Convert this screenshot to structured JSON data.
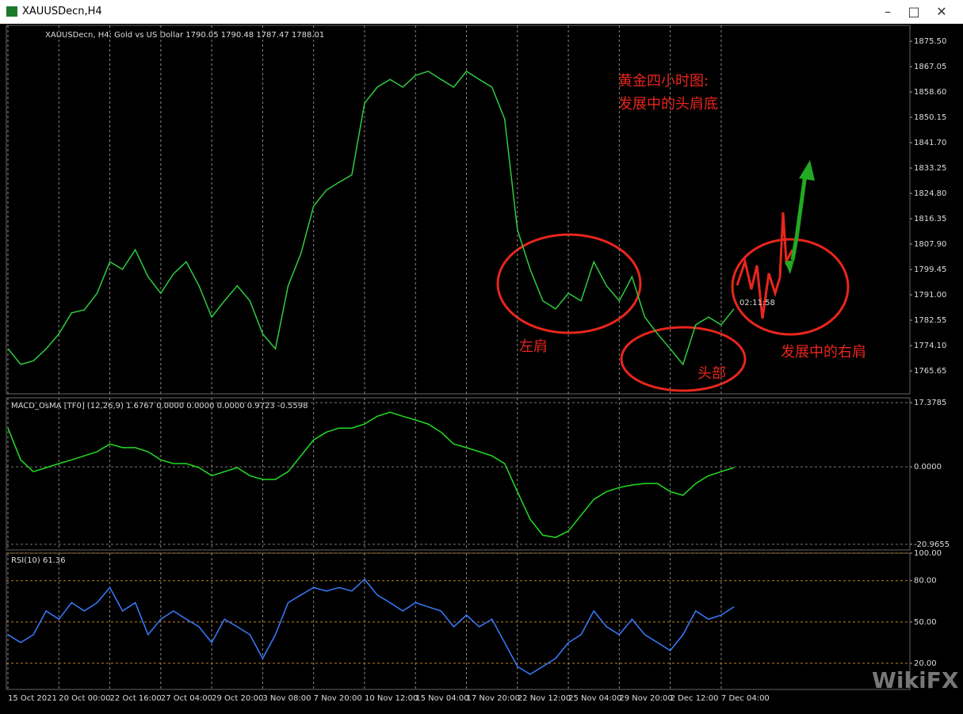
{
  "window": {
    "title": "XAUUSDecn,H4"
  },
  "watermark": "WikiFX",
  "chart_data": [
    {
      "type": "line",
      "title": "XAUUSDecn, H4:  Gold vs US Dollar  1790.05 1790.48 1787.47 1788.01",
      "categories": [
        "15 Oct 2021",
        null,
        null,
        null,
        "20 Oct 00:00",
        null,
        null,
        null,
        "22 Oct 16:00",
        null,
        null,
        null,
        "27 Oct 04:00",
        null,
        null,
        null,
        "29 Oct 20:00",
        null,
        null,
        null,
        "3 Nov 08:00",
        null,
        null,
        null,
        "7 Nov 20:00",
        null,
        null,
        null,
        "10 Nov 12:00",
        null,
        null,
        null,
        "15 Nov 04:00",
        null,
        null,
        null,
        "17 Nov 20:00",
        null,
        null,
        null,
        "22 Nov 12:00",
        null,
        null,
        null,
        "25 Nov 04:00",
        null,
        null,
        null,
        "29 Nov 20:00",
        null,
        null,
        null,
        "2 Dec 12:00",
        null,
        null,
        null,
        "7 Dec 04:00",
        null
      ],
      "values": [
        1773.1,
        1767.8,
        1769.0,
        1773.0,
        1778.0,
        1785.0,
        1786.0,
        1791.5,
        1802.0,
        1799.5,
        1806.0,
        1797.0,
        1791.5,
        1798.0,
        1802.0,
        1794.0,
        1783.6,
        1789.0,
        1794.0,
        1789.0,
        1778.0,
        1773.0,
        1794.0,
        1804.7,
        1820.6,
        1825.9,
        1828.5,
        1831.0,
        1854.9,
        1860.2,
        1862.8,
        1860.2,
        1864.1,
        1865.5,
        1862.8,
        1860.2,
        1865.5,
        1862.8,
        1860.2,
        1849.6,
        1812.7,
        1799.5,
        1789.0,
        1786.3,
        1791.5,
        1789.0,
        1802.0,
        1794.0,
        1789.0,
        1797.0,
        1783.6,
        1778.0,
        1773.0,
        1767.8,
        1781.0,
        1783.6,
        1781.0,
        1786.3
      ],
      "color": "#2ecc40",
      "ylim": [
        1758.0,
        1880.8
      ],
      "yticks": [
        {
          "value": 1875.5,
          "label": "1875.50"
        },
        1867.05,
        {
          "value": 1858.6,
          "label": "1858.60"
        },
        1850.15,
        {
          "value": 1841.7,
          "label": "1841.70"
        },
        1833.25,
        {
          "value": 1824.8,
          "label": "1824.80"
        },
        1816.35,
        {
          "value": 1807.9,
          "label": "1807.90"
        },
        1799.45,
        {
          "value": 1791,
          "label": "1791.00"
        },
        1782.55,
        {
          "value": 1774.1,
          "label": "1774.10"
        },
        1765.65
      ],
      "grid": true,
      "timer": "02:11:58",
      "annotations": [
        "黄金四小时图:",
        "发展中的头肩底",
        "左肩",
        "头部",
        "发展中的右肩"
      ]
    },
    {
      "type": "line",
      "title": "MACD_OsMA [TF0] (12,26,9)  1.6767 0.0000 0.0000 0.0000 0.9723 -0.5598",
      "values": [
        10.5,
        1.9,
        -1.3,
        -0.2,
        0.9,
        1.9,
        3.0,
        4.1,
        6.2,
        5.2,
        5.2,
        4.1,
        1.9,
        0.9,
        0.9,
        -0.2,
        -2.4,
        -1.3,
        -0.2,
        -2.4,
        -3.4,
        -3.4,
        -1.3,
        3.0,
        7.3,
        9.4,
        10.5,
        10.5,
        11.6,
        13.7,
        14.8,
        13.7,
        12.7,
        11.6,
        9.4,
        6.2,
        5.2,
        4.1,
        3.0,
        0.9,
        -6.7,
        -14.2,
        -18.5,
        -19.1,
        -17.4,
        -13.1,
        -8.8,
        -6.7,
        -5.6,
        -4.9,
        -4.5,
        -4.5,
        -6.7,
        -7.7,
        -4.5,
        -2.4,
        -1.3,
        -0.2
      ],
      "color": "#22dd22",
      "ylim": [
        -22.5,
        18.7
      ],
      "yticks": [
        17.3785,
        {
          "value": 0,
          "label": "0.0000"
        },
        -20.9655
      ]
    },
    {
      "type": "line",
      "title": "RSI(10) 61.36",
      "values": [
        40.8,
        35,
        40.8,
        58,
        52,
        64,
        58,
        64,
        75,
        58,
        64,
        40.8,
        52,
        58,
        52,
        46.5,
        35,
        52,
        46.5,
        40.8,
        23.5,
        40.8,
        64,
        69.6,
        75,
        72.5,
        75,
        72.5,
        81,
        69.6,
        64,
        58,
        64,
        61,
        58,
        46.5,
        55,
        46.5,
        52,
        35,
        17.7,
        12,
        17.7,
        23.5,
        35,
        40.8,
        58,
        46.5,
        40.8,
        52,
        40.8,
        35,
        29.2,
        40.8,
        58,
        52,
        55,
        61
      ],
      "color": "#3a7bff",
      "ylim": [
        1,
        100
      ],
      "yticks": [
        {
          "value": 100,
          "label": "100.00"
        },
        {
          "value": 80,
          "label": "80.00"
        },
        {
          "value": 50,
          "label": "50.00"
        },
        {
          "value": 20,
          "label": "20.00"
        }
      ],
      "grid": true
    }
  ]
}
